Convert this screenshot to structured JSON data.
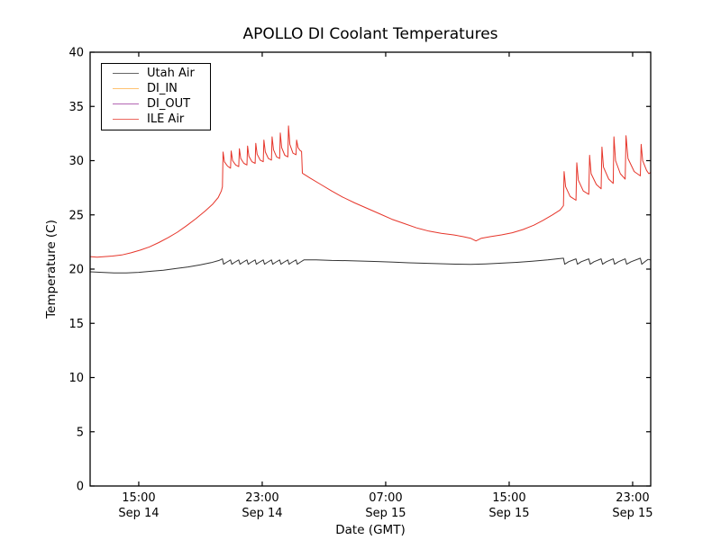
{
  "chart_data": {
    "type": "line",
    "title": "APOLLO DI Coolant Temperatures",
    "xlabel": "Date (GMT)",
    "ylabel": "Temperature (C)",
    "x_units": "hours since Sep 14 00:00 GMT",
    "xlim": [
      11.85,
      48.17
    ],
    "ylim": [
      0,
      40
    ],
    "grid": false,
    "yticks": [
      0,
      5,
      10,
      15,
      20,
      25,
      30,
      35,
      40
    ],
    "xticks": [
      {
        "hour": 15,
        "time": "15:00",
        "date": "Sep 14"
      },
      {
        "hour": 23,
        "time": "23:00",
        "date": "Sep 14"
      },
      {
        "hour": 31,
        "time": "07:00",
        "date": "Sep 15"
      },
      {
        "hour": 39,
        "time": "15:00",
        "date": "Sep 15"
      },
      {
        "hour": 47,
        "time": "23:00",
        "date": "Sep 15"
      }
    ],
    "legend": {
      "position": "upper left"
    },
    "series": [
      {
        "name": "Utah Air",
        "color": "#333333",
        "points": [
          [
            11.85,
            19.75
          ],
          [
            12.6,
            19.7
          ],
          [
            13.4,
            19.65
          ],
          [
            14.2,
            19.65
          ],
          [
            15.0,
            19.7
          ],
          [
            15.8,
            19.8
          ],
          [
            16.6,
            19.9
          ],
          [
            17.4,
            20.05
          ],
          [
            18.2,
            20.2
          ],
          [
            19.0,
            20.4
          ],
          [
            19.7,
            20.6
          ],
          [
            20.2,
            20.8
          ],
          [
            20.42,
            20.95
          ],
          [
            20.5,
            20.45
          ],
          [
            20.68,
            20.62
          ],
          [
            20.95,
            20.85
          ],
          [
            21.03,
            20.45
          ],
          [
            21.21,
            20.62
          ],
          [
            21.48,
            20.85
          ],
          [
            21.56,
            20.45
          ],
          [
            21.74,
            20.62
          ],
          [
            22.01,
            20.85
          ],
          [
            22.09,
            20.45
          ],
          [
            22.27,
            20.62
          ],
          [
            22.54,
            20.85
          ],
          [
            22.62,
            20.45
          ],
          [
            22.8,
            20.62
          ],
          [
            23.07,
            20.85
          ],
          [
            23.15,
            20.45
          ],
          [
            23.33,
            20.62
          ],
          [
            23.6,
            20.85
          ],
          [
            23.68,
            20.45
          ],
          [
            23.86,
            20.62
          ],
          [
            24.13,
            20.85
          ],
          [
            24.21,
            20.45
          ],
          [
            24.39,
            20.62
          ],
          [
            24.66,
            20.85
          ],
          [
            24.74,
            20.45
          ],
          [
            24.92,
            20.62
          ],
          [
            25.19,
            20.85
          ],
          [
            25.27,
            20.45
          ],
          [
            25.45,
            20.62
          ],
          [
            25.7,
            20.85
          ],
          [
            26.5,
            20.85
          ],
          [
            27.5,
            20.8
          ],
          [
            28.5,
            20.78
          ],
          [
            29.5,
            20.74
          ],
          [
            30.5,
            20.7
          ],
          [
            31.5,
            20.64
          ],
          [
            32.5,
            20.58
          ],
          [
            33.5,
            20.54
          ],
          [
            34.5,
            20.5
          ],
          [
            35.5,
            20.46
          ],
          [
            36.5,
            20.44
          ],
          [
            37.5,
            20.48
          ],
          [
            38.5,
            20.55
          ],
          [
            39.5,
            20.62
          ],
          [
            40.5,
            20.72
          ],
          [
            41.5,
            20.85
          ],
          [
            42.3,
            20.98
          ],
          [
            42.52,
            21.0
          ],
          [
            42.6,
            20.45
          ],
          [
            42.85,
            20.68
          ],
          [
            43.33,
            20.95
          ],
          [
            43.42,
            20.45
          ],
          [
            43.67,
            20.68
          ],
          [
            44.16,
            20.95
          ],
          [
            44.25,
            20.45
          ],
          [
            44.5,
            20.68
          ],
          [
            44.96,
            20.95
          ],
          [
            45.05,
            20.45
          ],
          [
            45.3,
            20.68
          ],
          [
            45.74,
            20.95
          ],
          [
            45.83,
            20.45
          ],
          [
            46.08,
            20.68
          ],
          [
            46.52,
            20.95
          ],
          [
            46.61,
            20.45
          ],
          [
            46.9,
            20.68
          ],
          [
            47.5,
            21.0
          ],
          [
            47.59,
            20.45
          ],
          [
            47.8,
            20.7
          ],
          [
            48.0,
            20.9
          ],
          [
            48.15,
            20.85
          ]
        ]
      },
      {
        "name": "DI_IN",
        "color": "#ffae42",
        "points": [
          [
            11.85,
            0
          ],
          [
            48.17,
            0
          ]
        ]
      },
      {
        "name": "DI_OUT",
        "color": "#993399",
        "points": [
          [
            11.85,
            0
          ],
          [
            48.17,
            0
          ]
        ]
      },
      {
        "name": "ILE Air",
        "color": "#e6352a",
        "points": [
          [
            11.85,
            21.15
          ],
          [
            12.3,
            21.1
          ],
          [
            12.8,
            21.15
          ],
          [
            13.3,
            21.2
          ],
          [
            13.9,
            21.3
          ],
          [
            14.5,
            21.5
          ],
          [
            15.1,
            21.75
          ],
          [
            15.7,
            22.05
          ],
          [
            16.3,
            22.45
          ],
          [
            16.9,
            22.9
          ],
          [
            17.5,
            23.4
          ],
          [
            18.1,
            24.0
          ],
          [
            18.7,
            24.65
          ],
          [
            19.3,
            25.35
          ],
          [
            19.8,
            26.0
          ],
          [
            20.15,
            26.6
          ],
          [
            20.35,
            27.2
          ],
          [
            20.42,
            27.6
          ],
          [
            20.46,
            30.8
          ],
          [
            20.55,
            29.9
          ],
          [
            20.75,
            29.5
          ],
          [
            20.95,
            29.3
          ],
          [
            20.99,
            30.9
          ],
          [
            21.08,
            30.0
          ],
          [
            21.28,
            29.6
          ],
          [
            21.48,
            29.45
          ],
          [
            21.52,
            31.1
          ],
          [
            21.61,
            30.2
          ],
          [
            21.81,
            29.75
          ],
          [
            22.01,
            29.6
          ],
          [
            22.05,
            31.35
          ],
          [
            22.14,
            30.4
          ],
          [
            22.34,
            29.9
          ],
          [
            22.54,
            29.75
          ],
          [
            22.58,
            31.6
          ],
          [
            22.67,
            30.6
          ],
          [
            22.87,
            30.05
          ],
          [
            23.07,
            29.9
          ],
          [
            23.11,
            31.9
          ],
          [
            23.2,
            30.8
          ],
          [
            23.4,
            30.2
          ],
          [
            23.6,
            30.05
          ],
          [
            23.64,
            32.2
          ],
          [
            23.73,
            31.0
          ],
          [
            23.93,
            30.35
          ],
          [
            24.13,
            30.2
          ],
          [
            24.17,
            32.55
          ],
          [
            24.26,
            31.2
          ],
          [
            24.46,
            30.5
          ],
          [
            24.66,
            30.35
          ],
          [
            24.7,
            33.2
          ],
          [
            24.79,
            31.5
          ],
          [
            24.99,
            30.7
          ],
          [
            25.19,
            30.55
          ],
          [
            25.23,
            31.9
          ],
          [
            25.32,
            31.2
          ],
          [
            25.45,
            30.95
          ],
          [
            25.55,
            30.85
          ],
          [
            25.6,
            28.85
          ],
          [
            26.1,
            28.4
          ],
          [
            26.8,
            27.8
          ],
          [
            27.5,
            27.2
          ],
          [
            28.2,
            26.65
          ],
          [
            29.0,
            26.1
          ],
          [
            29.8,
            25.6
          ],
          [
            30.6,
            25.1
          ],
          [
            31.4,
            24.6
          ],
          [
            32.2,
            24.2
          ],
          [
            33.0,
            23.8
          ],
          [
            33.8,
            23.5
          ],
          [
            34.6,
            23.3
          ],
          [
            35.4,
            23.15
          ],
          [
            36.0,
            23.0
          ],
          [
            36.5,
            22.85
          ],
          [
            36.85,
            22.6
          ],
          [
            37.2,
            22.85
          ],
          [
            37.8,
            23.0
          ],
          [
            38.5,
            23.15
          ],
          [
            39.2,
            23.35
          ],
          [
            39.9,
            23.65
          ],
          [
            40.6,
            24.05
          ],
          [
            41.2,
            24.5
          ],
          [
            41.8,
            25.0
          ],
          [
            42.3,
            25.45
          ],
          [
            42.52,
            25.85
          ],
          [
            42.56,
            29.0
          ],
          [
            42.66,
            27.6
          ],
          [
            42.95,
            26.7
          ],
          [
            43.33,
            26.35
          ],
          [
            43.38,
            29.8
          ],
          [
            43.48,
            28.2
          ],
          [
            43.8,
            27.2
          ],
          [
            44.16,
            26.9
          ],
          [
            44.21,
            30.5
          ],
          [
            44.31,
            28.8
          ],
          [
            44.65,
            27.8
          ],
          [
            44.96,
            27.4
          ],
          [
            45.01,
            31.25
          ],
          [
            45.11,
            29.4
          ],
          [
            45.45,
            28.3
          ],
          [
            45.74,
            27.9
          ],
          [
            45.79,
            32.2
          ],
          [
            45.89,
            30.0
          ],
          [
            46.2,
            28.8
          ],
          [
            46.52,
            28.3
          ],
          [
            46.57,
            32.3
          ],
          [
            46.7,
            30.2
          ],
          [
            47.1,
            29.0
          ],
          [
            47.5,
            28.6
          ],
          [
            47.55,
            31.5
          ],
          [
            47.65,
            30.0
          ],
          [
            47.9,
            29.1
          ],
          [
            48.05,
            28.8
          ],
          [
            48.15,
            28.9
          ]
        ]
      }
    ]
  }
}
